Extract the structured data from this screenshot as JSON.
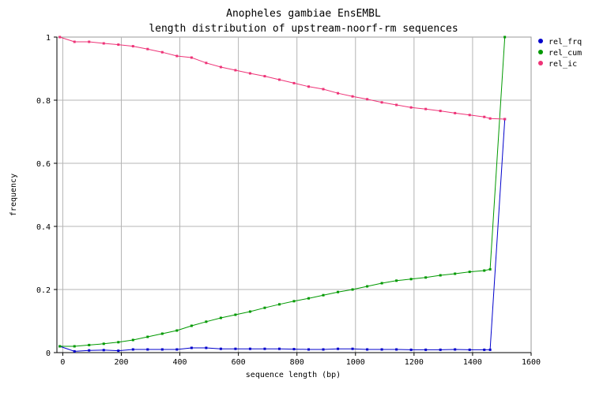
{
  "chart_data": {
    "type": "line",
    "title": "Anopheles gambiae EnsEMBL",
    "subtitle": "length distribution of upstream-noorf-rm sequences",
    "xlabel": "sequence length (bp)",
    "ylabel": "frequency",
    "xlim": [
      -20,
      1600
    ],
    "ylim": [
      0,
      1
    ],
    "xticks": [
      0,
      200,
      400,
      600,
      800,
      1000,
      1200,
      1400,
      1600
    ],
    "xtick_labels": [
      "0",
      "200",
      "400",
      "600",
      "800",
      "1000",
      "1200",
      "1400",
      "1600"
    ],
    "yticks": [
      0,
      0.2,
      0.4,
      0.6,
      0.8,
      1
    ],
    "ytick_labels": [
      "0",
      "0.2",
      "0.4",
      "0.6",
      "0.8",
      "1"
    ],
    "grid": true,
    "legend_position": "top-right",
    "x": [
      -10,
      40,
      90,
      140,
      190,
      240,
      290,
      340,
      390,
      440,
      490,
      540,
      590,
      640,
      690,
      740,
      790,
      840,
      890,
      940,
      990,
      1040,
      1090,
      1140,
      1190,
      1240,
      1290,
      1340,
      1390,
      1440,
      1460,
      1510
    ],
    "series": [
      {
        "name": "rel_frq",
        "color": "#0000cc",
        "values": [
          0.02,
          0.004,
          0.007,
          0.008,
          0.006,
          0.01,
          0.01,
          0.01,
          0.01,
          0.015,
          0.015,
          0.012,
          0.012,
          0.012,
          0.012,
          0.012,
          0.011,
          0.01,
          0.01,
          0.012,
          0.012,
          0.01,
          0.01,
          0.01,
          0.009,
          0.009,
          0.009,
          0.01,
          0.009,
          0.009,
          0.009,
          0.74
        ]
      },
      {
        "name": "rel_cum",
        "color": "#009900",
        "values": [
          0.02,
          0.02,
          0.024,
          0.028,
          0.033,
          0.04,
          0.05,
          0.06,
          0.07,
          0.085,
          0.098,
          0.11,
          0.12,
          0.13,
          0.142,
          0.153,
          0.163,
          0.172,
          0.182,
          0.192,
          0.2,
          0.21,
          0.22,
          0.228,
          0.233,
          0.238,
          0.245,
          0.25,
          0.256,
          0.26,
          0.264,
          1.0
        ]
      },
      {
        "name": "rel_ic",
        "color": "#ee3377",
        "values": [
          1.0,
          0.985,
          0.985,
          0.98,
          0.976,
          0.971,
          0.962,
          0.952,
          0.94,
          0.935,
          0.918,
          0.905,
          0.895,
          0.885,
          0.876,
          0.865,
          0.854,
          0.843,
          0.835,
          0.822,
          0.812,
          0.803,
          0.793,
          0.785,
          0.777,
          0.772,
          0.766,
          0.759,
          0.753,
          0.747,
          0.742,
          0.74
        ]
      }
    ]
  }
}
